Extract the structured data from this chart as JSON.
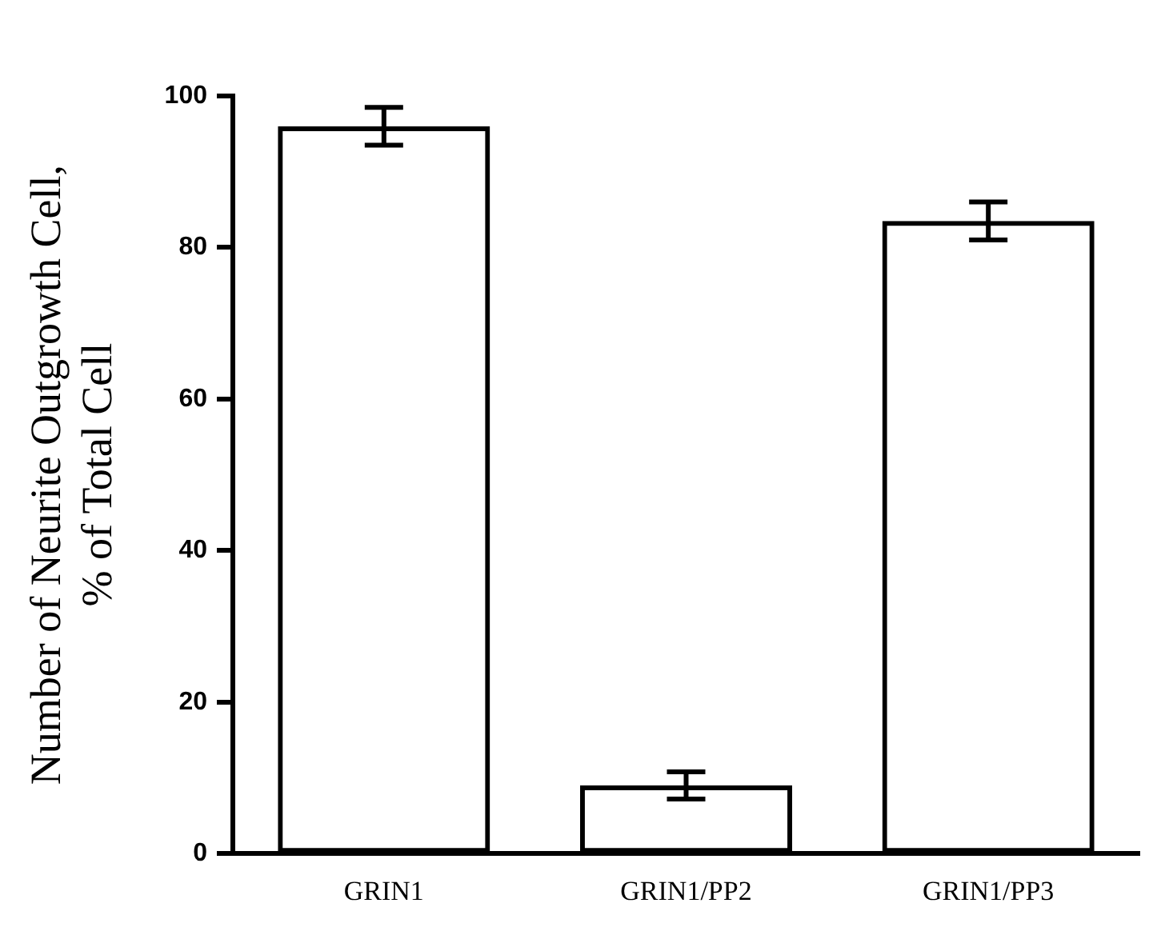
{
  "chart_data": {
    "type": "bar",
    "ylabel": "Number of Neurite Outgrowth Cell,\n% of Total Cell",
    "categories": [
      "GRIN1",
      "GRIN1/PP2",
      "GRIN1/PP3"
    ],
    "values": [
      96,
      9,
      83.5
    ],
    "errors": [
      2.5,
      1.8,
      2.5
    ],
    "color": "#000000",
    "ylim": [
      0,
      100
    ],
    "yticks": [
      0,
      20,
      40,
      60,
      80,
      100
    ],
    "grid": false,
    "legend": false
  }
}
